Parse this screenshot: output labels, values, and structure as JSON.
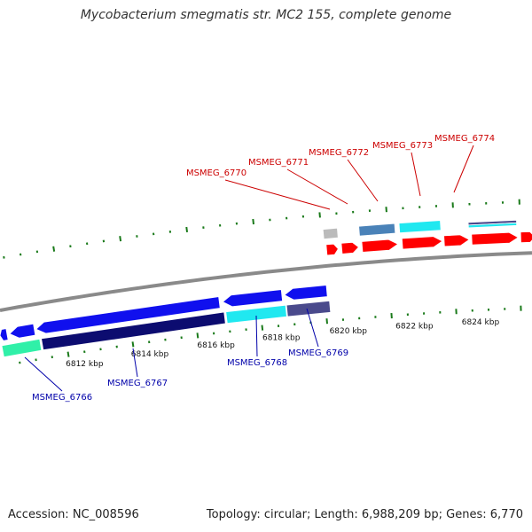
{
  "title": "Mycobacterium smegmatis str. MC2 155, complete genome",
  "footer": {
    "accession": "Accession: NC_008596",
    "stats": "Topology: circular; Length: 6,988,209 bp; Genes: 6,770"
  },
  "colors": {
    "backbone": "#8a8a8a",
    "tick": "#1a7a1a",
    "tick_label": "#111111",
    "label_forward": "#cc0000",
    "label_reverse": "#0000aa",
    "gene_red": "#ff0000",
    "gene_blue": "#1010ee",
    "gene_navy": "#0c0c70",
    "gene_cyan": "#20e8f0",
    "gene_steel": "#4a82b8",
    "gene_slate": "#4a4a8c",
    "gene_gray": "#bbbbbb",
    "gene_mint": "#30f0a8"
  },
  "outer_ticks": {
    "labels": []
  },
  "inner_ticks": {
    "labels": [
      "6812 kbp",
      "6814 kbp",
      "6816 kbp",
      "6818 kbp",
      "6820 kbp",
      "6822 kbp",
      "6824 kbp"
    ]
  },
  "forward_gene_labels": [
    "MSMEG_6770",
    "MSMEG_6771",
    "MSMEG_6772",
    "MSMEG_6773",
    "MSMEG_6774"
  ],
  "reverse_gene_labels": [
    "MSMEG_6766",
    "MSMEG_6767",
    "MSMEG_6768",
    "MSMEG_6769"
  ]
}
